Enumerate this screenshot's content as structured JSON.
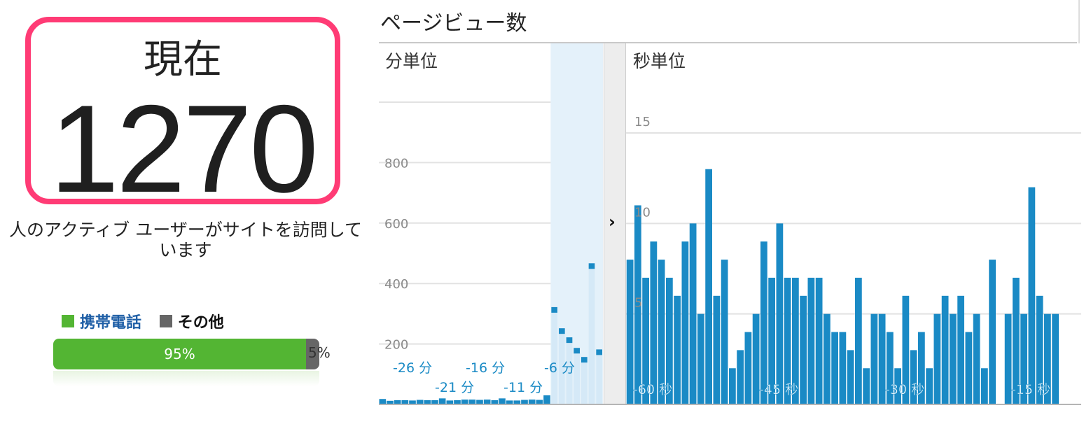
{
  "active_users": {
    "label": "現在",
    "count": "1270",
    "caption": "人のアクティブ ユーザーがサイトを訪問しています",
    "legend": [
      {
        "label": "携帯電話",
        "color": "#53b533",
        "text_color": "#1f5fa6"
      },
      {
        "label": "その他",
        "color": "#666666",
        "text_color": "#111111"
      }
    ],
    "mobile_pct": "95%",
    "other_pct": "5%"
  },
  "pageviews": {
    "title": "ページビュー数",
    "per_minute_label": "分単位",
    "per_second_label": "秒単位",
    "expand_icon": "chevron-right-icon"
  },
  "chart_data": [
    {
      "type": "bar",
      "title": "分単位",
      "y_ticks": [
        200,
        400,
        600,
        800
      ],
      "ylim": [
        0,
        1000
      ],
      "x_tick_labels": [
        "-26 分",
        "-21 分",
        "-16 分",
        "-11 分",
        "-6 分"
      ],
      "values": [
        18,
        12,
        14,
        14,
        13,
        15,
        14,
        14,
        20,
        13,
        14,
        16,
        16,
        15,
        16,
        14,
        20,
        13,
        13,
        15,
        16,
        15,
        30,
        315,
        245,
        215,
        180,
        150,
        460,
        175
      ],
      "highlight_from_index": 23,
      "colors": {
        "bar": "#1a8ac5",
        "highlight": "#e4f1fa"
      }
    },
    {
      "type": "bar",
      "title": "秒単位",
      "y_ticks": [
        5,
        10,
        15
      ],
      "ylim": [
        0,
        15
      ],
      "x_tick_labels": [
        "-60 秒",
        "-45 秒",
        "-30 秒",
        "-15 秒"
      ],
      "values": [
        8,
        11,
        7,
        9,
        8,
        7,
        6,
        9,
        10,
        5,
        13,
        6,
        8,
        2,
        3,
        4,
        5,
        9,
        7,
        10,
        7,
        7,
        6,
        7,
        7,
        5,
        4,
        4,
        3,
        7,
        2,
        5,
        5,
        4,
        2,
        6,
        3,
        4,
        2,
        5,
        6,
        5,
        6,
        4,
        5,
        2,
        8,
        0,
        5,
        7,
        5,
        12,
        6,
        5,
        5
      ],
      "colors": {
        "bar": "#1a8ac5"
      }
    }
  ]
}
